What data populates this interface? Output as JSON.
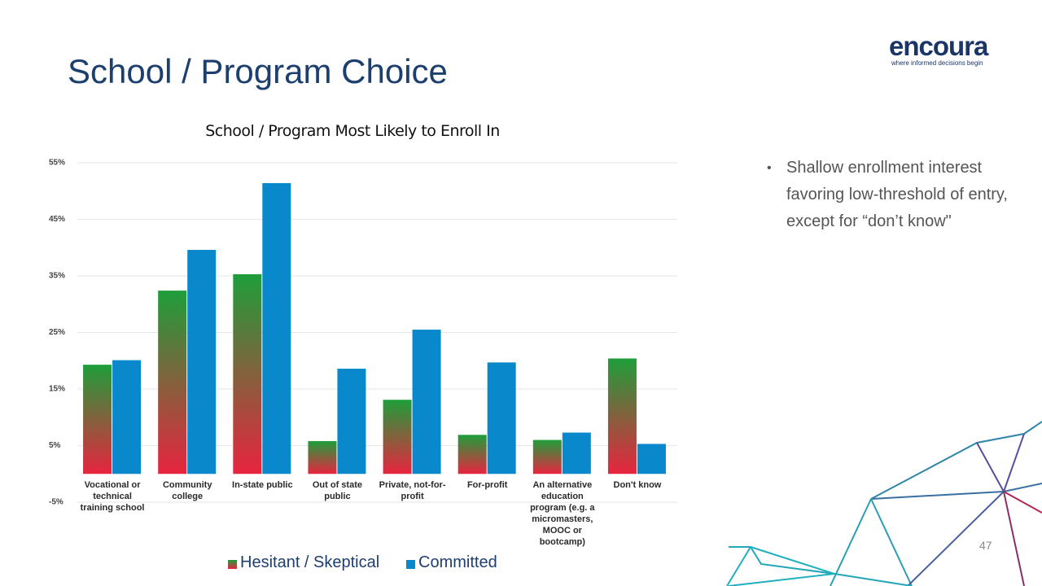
{
  "slide": {
    "title": "School / Program Choice",
    "logo": "encoura",
    "tagline": "where informed decisions begin",
    "bullets": [
      "Shallow enrollment interest favoring low-threshold of entry, except for “don’t know\""
    ],
    "page_number": "47"
  },
  "chart_data": {
    "type": "bar",
    "title": "School / Program Most Likely to Enroll In",
    "categories": [
      "Vocational or technical training school",
      "Community college",
      "In-state public",
      "Out of state public",
      "Private, not-for-profit",
      "For-profit",
      "An alternative education program (e.g. a micromasters, MOOC or bootcamp)",
      "Don't know"
    ],
    "series": [
      {
        "name": "Hesitant / Skeptical",
        "color": [
          "#1e9e3a",
          "#e8243f"
        ],
        "values": [
          19.3,
          32.4,
          35.3,
          5.8,
          13.1,
          6.9,
          6.0,
          20.4
        ]
      },
      {
        "name": "Committed",
        "color": "#0a88cc",
        "values": [
          20.1,
          39.6,
          51.4,
          18.6,
          25.5,
          19.7,
          7.3,
          5.3
        ]
      }
    ],
    "ylim": [
      -5,
      55
    ],
    "yticks": [
      {
        "value": -5,
        "label": "-5%"
      },
      {
        "value": 5,
        "label": "5%"
      },
      {
        "value": 15,
        "label": "15%"
      },
      {
        "value": 25,
        "label": "25%"
      },
      {
        "value": 35,
        "label": "35%"
      },
      {
        "value": 45,
        "label": "45%"
      },
      {
        "value": 55,
        "label": "55%"
      }
    ],
    "grid": true,
    "legend": "bottom"
  }
}
